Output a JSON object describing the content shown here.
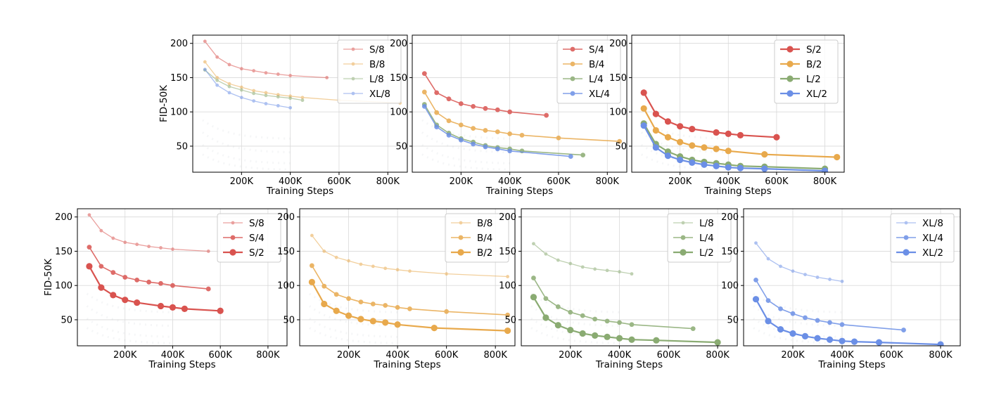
{
  "x_values": [
    50000,
    100000,
    150000,
    200000,
    250000,
    300000,
    350000,
    400000,
    450000,
    550000,
    600000,
    650000,
    700000,
    800000,
    850000
  ],
  "colors": {
    "S": "#d9534f",
    "B": "#e8a94c",
    "L": "#8aab72",
    "XL": "#6b8fe6"
  },
  "chart_data": [
    {
      "type": "line",
      "panel": "top-1",
      "xlabel": "Training Steps",
      "ylabel": "FID-50K",
      "xticks": [
        "200K",
        "400K",
        "600K",
        "800K"
      ],
      "yticks": [
        "50",
        "100",
        "150",
        "200"
      ],
      "xlim": [
        0,
        880000
      ],
      "ylim": [
        12,
        212
      ],
      "grid": true,
      "legend_position": "top-right",
      "series": [
        {
          "name": "S/8",
          "family": "S",
          "patch": 8,
          "x": [
            50000,
            100000,
            150000,
            200000,
            250000,
            300000,
            350000,
            400000,
            550000
          ],
          "y": [
            203,
            180,
            169,
            163,
            160,
            157,
            155,
            153,
            150
          ]
        },
        {
          "name": "B/8",
          "family": "B",
          "patch": 8,
          "x": [
            50000,
            100000,
            150000,
            200000,
            250000,
            300000,
            350000,
            400000,
            450000,
            600000,
            850000
          ],
          "y": [
            173,
            150,
            141,
            136,
            131,
            128,
            125,
            123,
            121,
            117,
            113
          ]
        },
        {
          "name": "L/8",
          "family": "L",
          "patch": 8,
          "x": [
            50000,
            100000,
            150000,
            200000,
            250000,
            300000,
            350000,
            400000,
            450000
          ],
          "y": [
            161,
            146,
            137,
            132,
            127,
            124,
            122,
            120,
            117
          ]
        },
        {
          "name": "XL/8",
          "family": "XL",
          "patch": 8,
          "x": [
            50000,
            100000,
            150000,
            200000,
            250000,
            300000,
            350000,
            400000
          ],
          "y": [
            162,
            139,
            128,
            121,
            116,
            112,
            109,
            106
          ]
        }
      ]
    },
    {
      "type": "line",
      "panel": "top-2",
      "xlabel": "Training Steps",
      "ylabel": "",
      "xticks": [
        "200K",
        "400K",
        "600K",
        "800K"
      ],
      "yticks": [
        "50",
        "100",
        "150",
        "200"
      ],
      "xlim": [
        0,
        880000
      ],
      "ylim": [
        12,
        212
      ],
      "grid": true,
      "legend_position": "top-right",
      "series": [
        {
          "name": "S/4",
          "family": "S",
          "patch": 4,
          "x": [
            50000,
            100000,
            150000,
            200000,
            250000,
            300000,
            350000,
            400000,
            550000
          ],
          "y": [
            156,
            128,
            119,
            112,
            108,
            105,
            103,
            100,
            95
          ]
        },
        {
          "name": "B/4",
          "family": "B",
          "patch": 4,
          "x": [
            50000,
            100000,
            150000,
            200000,
            250000,
            300000,
            350000,
            400000,
            450000,
            600000,
            850000
          ],
          "y": [
            129,
            99,
            87,
            81,
            76,
            73,
            71,
            68,
            66,
            62,
            57
          ]
        },
        {
          "name": "L/4",
          "family": "L",
          "patch": 4,
          "x": [
            50000,
            100000,
            150000,
            200000,
            250000,
            300000,
            350000,
            400000,
            450000,
            700000
          ],
          "y": [
            111,
            81,
            69,
            61,
            56,
            51,
            48,
            46,
            43,
            37
          ]
        },
        {
          "name": "XL/4",
          "family": "XL",
          "patch": 4,
          "x": [
            50000,
            100000,
            150000,
            200000,
            250000,
            300000,
            350000,
            400000,
            650000
          ],
          "y": [
            108,
            78,
            66,
            59,
            53,
            49,
            46,
            43,
            35
          ]
        }
      ]
    },
    {
      "type": "line",
      "panel": "top-3",
      "xlabel": "Training Steps",
      "ylabel": "",
      "xticks": [
        "200K",
        "400K",
        "600K",
        "800K"
      ],
      "yticks": [
        "50",
        "100",
        "150",
        "200"
      ],
      "xlim": [
        0,
        880000
      ],
      "ylim": [
        12,
        212
      ],
      "grid": true,
      "legend_position": "top-right",
      "series": [
        {
          "name": "S/2",
          "family": "S",
          "patch": 2,
          "x": [
            50000,
            100000,
            150000,
            200000,
            250000,
            350000,
            400000,
            450000,
            600000
          ],
          "y": [
            128,
            97,
            86,
            79,
            75,
            70,
            68,
            66,
            63
          ]
        },
        {
          "name": "B/2",
          "family": "B",
          "patch": 2,
          "x": [
            50000,
            100000,
            150000,
            200000,
            250000,
            300000,
            350000,
            400000,
            550000,
            850000
          ],
          "y": [
            105,
            73,
            63,
            56,
            51,
            48,
            46,
            43,
            38,
            34
          ]
        },
        {
          "name": "L/2",
          "family": "L",
          "patch": 2,
          "x": [
            50000,
            100000,
            150000,
            200000,
            250000,
            300000,
            350000,
            400000,
            450000,
            550000,
            800000
          ],
          "y": [
            83,
            53,
            42,
            35,
            30,
            27,
            25,
            23,
            21,
            20,
            17
          ]
        },
        {
          "name": "XL/2",
          "family": "XL",
          "patch": 2,
          "x": [
            50000,
            100000,
            150000,
            200000,
            250000,
            300000,
            350000,
            400000,
            450000,
            550000,
            800000
          ],
          "y": [
            80,
            48,
            36,
            30,
            26,
            23,
            21,
            19,
            18,
            17,
            14
          ]
        }
      ]
    },
    {
      "type": "line",
      "panel": "bottom-1",
      "xlabel": "Training Steps",
      "ylabel": "FID-50K",
      "xticks": [
        "200K",
        "400K",
        "600K",
        "800K"
      ],
      "yticks": [
        "50",
        "100",
        "150",
        "200"
      ],
      "xlim": [
        0,
        880000
      ],
      "ylim": [
        12,
        212
      ],
      "grid": true,
      "legend_position": "top-right",
      "series": [
        {
          "name": "S/8",
          "family": "S",
          "patch": 8,
          "x": [
            50000,
            100000,
            150000,
            200000,
            250000,
            300000,
            350000,
            400000,
            550000
          ],
          "y": [
            203,
            180,
            169,
            163,
            160,
            157,
            155,
            153,
            150
          ]
        },
        {
          "name": "S/4",
          "family": "S",
          "patch": 4,
          "x": [
            50000,
            100000,
            150000,
            200000,
            250000,
            300000,
            350000,
            400000,
            550000
          ],
          "y": [
            156,
            128,
            119,
            112,
            108,
            105,
            103,
            100,
            95
          ]
        },
        {
          "name": "S/2",
          "family": "S",
          "patch": 2,
          "x": [
            50000,
            100000,
            150000,
            200000,
            250000,
            350000,
            400000,
            450000,
            600000
          ],
          "y": [
            128,
            97,
            86,
            79,
            75,
            70,
            68,
            66,
            63
          ]
        }
      ]
    },
    {
      "type": "line",
      "panel": "bottom-2",
      "xlabel": "Training Steps",
      "ylabel": "",
      "xticks": [
        "200K",
        "400K",
        "600K",
        "800K"
      ],
      "yticks": [
        "50",
        "100",
        "150",
        "200"
      ],
      "xlim": [
        0,
        880000
      ],
      "ylim": [
        12,
        212
      ],
      "grid": true,
      "legend_position": "top-right",
      "series": [
        {
          "name": "B/8",
          "family": "B",
          "patch": 8,
          "x": [
            50000,
            100000,
            150000,
            200000,
            250000,
            300000,
            350000,
            400000,
            450000,
            600000,
            850000
          ],
          "y": [
            173,
            150,
            141,
            136,
            131,
            128,
            125,
            123,
            121,
            117,
            113
          ]
        },
        {
          "name": "B/4",
          "family": "B",
          "patch": 4,
          "x": [
            50000,
            100000,
            150000,
            200000,
            250000,
            300000,
            350000,
            400000,
            450000,
            600000,
            850000
          ],
          "y": [
            129,
            99,
            87,
            81,
            76,
            73,
            71,
            68,
            66,
            62,
            57
          ]
        },
        {
          "name": "B/2",
          "family": "B",
          "patch": 2,
          "x": [
            50000,
            100000,
            150000,
            200000,
            250000,
            300000,
            350000,
            400000,
            550000,
            850000
          ],
          "y": [
            105,
            73,
            63,
            56,
            51,
            48,
            46,
            43,
            38,
            34
          ]
        }
      ]
    },
    {
      "type": "line",
      "panel": "bottom-3",
      "xlabel": "Training Steps",
      "ylabel": "",
      "xticks": [
        "200K",
        "400K",
        "600K",
        "800K"
      ],
      "yticks": [
        "50",
        "100",
        "150",
        "200"
      ],
      "xlim": [
        0,
        880000
      ],
      "ylim": [
        12,
        212
      ],
      "grid": true,
      "legend_position": "top-right",
      "series": [
        {
          "name": "L/8",
          "family": "L",
          "patch": 8,
          "x": [
            50000,
            100000,
            150000,
            200000,
            250000,
            300000,
            350000,
            400000,
            450000
          ],
          "y": [
            161,
            146,
            137,
            132,
            127,
            124,
            122,
            120,
            117
          ]
        },
        {
          "name": "L/4",
          "family": "L",
          "patch": 4,
          "x": [
            50000,
            100000,
            150000,
            200000,
            250000,
            300000,
            350000,
            400000,
            450000,
            700000
          ],
          "y": [
            111,
            81,
            69,
            61,
            56,
            51,
            48,
            46,
            43,
            37
          ]
        },
        {
          "name": "L/2",
          "family": "L",
          "patch": 2,
          "x": [
            50000,
            100000,
            150000,
            200000,
            250000,
            300000,
            350000,
            400000,
            450000,
            550000,
            800000
          ],
          "y": [
            83,
            53,
            42,
            35,
            30,
            27,
            25,
            23,
            21,
            20,
            17
          ]
        }
      ]
    },
    {
      "type": "line",
      "panel": "bottom-4",
      "xlabel": "Training Steps",
      "ylabel": "",
      "xticks": [
        "200K",
        "400K",
        "600K",
        "800K"
      ],
      "yticks": [
        "50",
        "100",
        "150",
        "200"
      ],
      "xlim": [
        0,
        880000
      ],
      "ylim": [
        12,
        212
      ],
      "grid": true,
      "legend_position": "top-right",
      "series": [
        {
          "name": "XL/8",
          "family": "XL",
          "patch": 8,
          "x": [
            50000,
            100000,
            150000,
            200000,
            250000,
            300000,
            350000,
            400000
          ],
          "y": [
            162,
            139,
            128,
            121,
            116,
            112,
            109,
            106
          ]
        },
        {
          "name": "XL/4",
          "family": "XL",
          "patch": 4,
          "x": [
            50000,
            100000,
            150000,
            200000,
            250000,
            300000,
            350000,
            400000,
            650000
          ],
          "y": [
            108,
            78,
            66,
            59,
            53,
            49,
            46,
            43,
            35
          ]
        },
        {
          "name": "XL/2",
          "family": "XL",
          "patch": 2,
          "x": [
            50000,
            100000,
            150000,
            200000,
            250000,
            300000,
            350000,
            400000,
            450000,
            550000,
            800000
          ],
          "y": [
            80,
            48,
            36,
            30,
            26,
            23,
            21,
            19,
            18,
            17,
            14
          ]
        }
      ]
    }
  ]
}
